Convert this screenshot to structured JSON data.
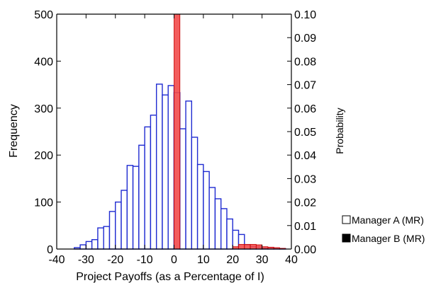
{
  "chart_data": {
    "type": "bar",
    "title": "",
    "xlabel": "Project Payoffs (as a Percentage of I)",
    "ylabel": "Frequency",
    "y2label": "Probability",
    "xlim": [
      -40,
      40
    ],
    "ylim": [
      0,
      500
    ],
    "y2lim": [
      0,
      0.1
    ],
    "x_ticks": [
      -40,
      -30,
      -20,
      -10,
      0,
      10,
      20,
      30,
      40
    ],
    "y_ticks": [
      0,
      100,
      200,
      300,
      400,
      500
    ],
    "y2_ticks": [
      "0.00",
      "0.01",
      "0.02",
      "0.03",
      "0.04",
      "0.05",
      "0.06",
      "0.07",
      "0.08",
      "0.09",
      "0.10"
    ],
    "grid": false,
    "legend_position": "bottom-right",
    "bin_width": 2,
    "series": [
      {
        "name": "Manager A (MR)",
        "axis": "left",
        "fill": "#ffffff",
        "stroke": "#1f2bd1",
        "bin_starts": [
          -34,
          -32,
          -30,
          -28,
          -26,
          -24,
          -22,
          -20,
          -18,
          -16,
          -14,
          -12,
          -10,
          -8,
          -6,
          -4,
          -2,
          0,
          2,
          4,
          6,
          8,
          10,
          12,
          14,
          16,
          18,
          20,
          22,
          24,
          26,
          28,
          30,
          32,
          34,
          36
        ],
        "values": [
          3,
          9,
          16,
          20,
          45,
          48,
          80,
          100,
          125,
          178,
          176,
          221,
          260,
          285,
          351,
          328,
          348,
          333,
          256,
          315,
          238,
          180,
          165,
          131,
          107,
          86,
          64,
          40,
          31,
          9,
          5,
          4,
          2,
          3,
          1,
          1
        ]
      },
      {
        "name": "Manager B (MR)",
        "axis": "right",
        "fill": "#f24a4a",
        "stroke": "#c40000",
        "bin_starts": [
          0,
          20,
          22,
          24,
          26,
          28,
          30,
          32,
          34,
          36
        ],
        "values": [
          0.1,
          0.001,
          0.002,
          0.002,
          0.002,
          0.0018,
          0.001,
          0.0008,
          0.0006,
          0.0003
        ]
      }
    ]
  }
}
